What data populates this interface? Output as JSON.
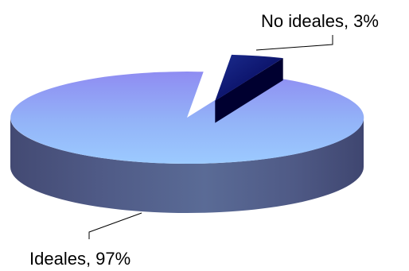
{
  "chart_data": {
    "type": "pie",
    "style": "3d",
    "title": "",
    "slices": [
      {
        "label": "Ideales, 97%",
        "value": 97,
        "color": "#9999ff"
      },
      {
        "label": "No ideales, 3%",
        "value": 3,
        "color": "#000080"
      }
    ],
    "exploded_slice": "No ideales, 3%",
    "legend": "none"
  }
}
